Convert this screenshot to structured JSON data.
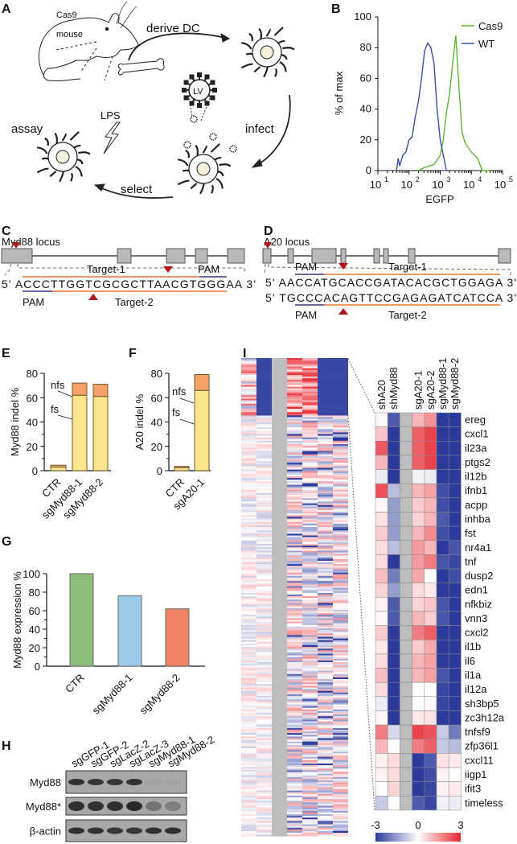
{
  "panels": {
    "A": "A",
    "B": "B",
    "C": "C",
    "D": "D",
    "E": "E",
    "F": "F",
    "G": "G",
    "H": "H",
    "I": "I"
  },
  "schematic": {
    "mouse_label_1": "Cas9",
    "mouse_label_2": "mouse",
    "derive": "derive DC",
    "infect": "infect",
    "select": "select",
    "assay": "assay",
    "lps": "LPS",
    "lv": "LV"
  },
  "loci": {
    "myd88": {
      "title": "Myd88 locus",
      "sequence": "5' ACCCTTGGTCGCGCTTAACGTGGGAA 3'",
      "target1": "Target-1",
      "target2": "Target-2",
      "pam_top": "PAM",
      "pam_bottom": "PAM"
    },
    "a20": {
      "title": "A20 locus",
      "sequence1": "5' AACCATGCACCGATACACGCTGGAGA 3'",
      "sequence2": "5' TGCCCACAGTTCCGAGAGATCATCCA 3'",
      "target1": "Target-1",
      "target2": "Target-2",
      "pam_top": "PAM",
      "pam_bottom": "PAM"
    }
  },
  "colors": {
    "cas9": "#5db535",
    "wt": "#3a4ea3",
    "fs": "#fde48a",
    "nfs": "#f4a066",
    "ctr": "#8dbd7b",
    "sgMyd88_1": "#9ccaea",
    "sgMyd88_2": "#ee8262",
    "pam_line": "#3a4ea3",
    "target_line": "#e8762c",
    "marker": "#b3141c",
    "heat_low": "#2b3a9b",
    "heat_mid": "#ffffff",
    "heat_high": "#e8262f",
    "heat_na": "#bdbdbd"
  },
  "chart_data": [
    {
      "id": "B",
      "type": "line",
      "xlabel": "EGFP",
      "ylabel": "% of max",
      "xscale": "log",
      "xlim": [
        10,
        100000
      ],
      "ylim": [
        0,
        100
      ],
      "xticks": [
        "1",
        "2",
        "3",
        "4",
        "5"
      ],
      "yticks": [
        0,
        20,
        40,
        60,
        80,
        100
      ],
      "legend": "top-right",
      "series": [
        {
          "name": "Cas9",
          "x_log10": [
            2.3,
            2.5,
            2.8,
            3.0,
            3.1,
            3.2,
            3.3,
            3.4,
            3.5,
            3.6,
            3.7,
            3.8,
            4.0,
            4.2,
            4.35,
            4.6
          ],
          "y": [
            0,
            2,
            4,
            10,
            20,
            38,
            50,
            70,
            88,
            55,
            25,
            18,
            12,
            8,
            0,
            0
          ]
        },
        {
          "name": "WT",
          "x_log10": [
            1.6,
            1.65,
            1.7,
            1.8,
            1.9,
            2.0,
            2.1,
            2.2,
            2.3,
            2.4,
            2.5,
            2.6,
            2.7,
            2.8,
            2.9,
            3.0,
            3.1,
            3.2
          ],
          "y": [
            0,
            8,
            3,
            10,
            12,
            20,
            22,
            35,
            45,
            60,
            78,
            83,
            80,
            70,
            40,
            20,
            10,
            0
          ]
        }
      ]
    },
    {
      "id": "E",
      "type": "bar",
      "stacked": true,
      "ylabel": "Myd88 indel %",
      "ylim": [
        0,
        80
      ],
      "yticks": [
        0,
        20,
        40,
        60,
        80
      ],
      "categories": [
        "CTR",
        "sgMyd88-1",
        "sgMyd88-2"
      ],
      "series": [
        {
          "name": "fs",
          "values": [
            3,
            62,
            61
          ]
        },
        {
          "name": "nfs",
          "values": [
            1.5,
            10,
            10
          ]
        }
      ]
    },
    {
      "id": "F",
      "type": "bar",
      "stacked": true,
      "ylabel": "A20 indel %",
      "ylim": [
        0,
        80
      ],
      "yticks": [
        0,
        20,
        40,
        60,
        80
      ],
      "categories": [
        "CTR",
        "sgA20-1"
      ],
      "series": [
        {
          "name": "fs",
          "values": [
            2.5,
            66
          ]
        },
        {
          "name": "nfs",
          "values": [
            1,
            13
          ]
        }
      ]
    },
    {
      "id": "G",
      "type": "bar",
      "ylabel": "Myd88 expression %",
      "ylim": [
        0,
        100
      ],
      "yticks": [
        0,
        20,
        40,
        60,
        80,
        100
      ],
      "categories": [
        "CTR",
        "sgMyd88-1",
        "sgMyd88-2"
      ],
      "values": [
        100,
        76,
        62
      ]
    },
    {
      "id": "I",
      "type": "heatmap",
      "colorbar": {
        "min": -3,
        "mid": 0,
        "max": 3,
        "labels": [
          "-3",
          "0",
          "3"
        ]
      },
      "columns": [
        "shA20",
        "shMyd88",
        "",
        "sgA20-1",
        "sgA20-2",
        "sgMyd88-1",
        "sgMyd88-2"
      ],
      "rows": [
        "ereg",
        "cxcl1",
        "il23a",
        "ptgs2",
        "il12b",
        "ifnb1",
        "acpp",
        "inhba",
        "fst",
        "nr4a1",
        "tnf",
        "dusp2",
        "edn1",
        "nfkbiz",
        "vnn3",
        "cxcl2",
        "il1b",
        "il6",
        "il1a",
        "il12a",
        "sh3bp5",
        "zc3h12a",
        "tnfsf9",
        "zfp36l1",
        "cxcl11",
        "iigp1",
        "ifit3",
        "timeless"
      ],
      "values": [
        [
          0.1,
          -2.5,
          null,
          1,
          1.5,
          -3,
          -3
        ],
        [
          0.8,
          -3,
          null,
          2.2,
          2.6,
          -3,
          -3
        ],
        [
          2.3,
          -3,
          null,
          2.2,
          2.6,
          -3,
          -3
        ],
        [
          1,
          -3,
          null,
          2.2,
          2.6,
          -3,
          -3
        ],
        [
          -0.3,
          -3,
          null,
          -0.2,
          -0.3,
          -3,
          -3
        ],
        [
          2.4,
          -1,
          null,
          1,
          1.3,
          -2.7,
          -3
        ],
        [
          0.1,
          -1.5,
          null,
          0.7,
          1,
          -2.7,
          -3
        ],
        [
          0.4,
          -1.5,
          null,
          0.6,
          1,
          -2.5,
          -3
        ],
        [
          0.7,
          -1.5,
          null,
          1,
          1.6,
          -2.7,
          -3
        ],
        [
          0.5,
          -1,
          null,
          1.4,
          1,
          -3,
          -2.6
        ],
        [
          0.5,
          -3,
          null,
          1.4,
          1.8,
          -2.6,
          -2.8
        ],
        [
          0.9,
          -2,
          null,
          1.2,
          0,
          -3,
          -2.7
        ],
        [
          0.6,
          -1.5,
          null,
          0.5,
          0.3,
          -3,
          -3
        ],
        [
          0.2,
          -2.5,
          null,
          0.6,
          0.8,
          -2.6,
          -3
        ],
        [
          0.1,
          -2.5,
          null,
          1,
          0.7,
          -2.6,
          -3
        ],
        [
          0.7,
          -3,
          null,
          1.8,
          2.2,
          -3,
          -3
        ],
        [
          0.3,
          -3,
          null,
          0.7,
          1.2,
          -3,
          -3
        ],
        [
          0.5,
          -3,
          null,
          1,
          1.3,
          -3,
          -3
        ],
        [
          0.9,
          -3,
          null,
          1,
          1.3,
          -2.6,
          -3
        ],
        [
          0.5,
          -3,
          null,
          0,
          0,
          -2.8,
          -3
        ],
        [
          -0.3,
          -3,
          null,
          0,
          0.1,
          -2.8,
          -3
        ],
        [
          0.1,
          -3,
          null,
          0.3,
          0.4,
          -3,
          -3
        ],
        [
          1.8,
          -0.6,
          null,
          2.6,
          2.4,
          -0.8,
          -2
        ],
        [
          1,
          0,
          null,
          1.8,
          2.2,
          -0.8,
          -1
        ],
        [
          0.2,
          0.5,
          null,
          -3,
          -2.5,
          0.4,
          0.3
        ],
        [
          0.2,
          0.5,
          null,
          -3,
          -2.7,
          0.2,
          0
        ],
        [
          0,
          0.6,
          null,
          -3,
          -2.8,
          0.2,
          0.3
        ],
        [
          -0.8,
          0,
          null,
          -2.5,
          -2.8,
          -0.2,
          -0.3
        ]
      ]
    }
  ],
  "blot": {
    "lanes": [
      "sgGFP-1",
      "sgGFP-2",
      "sgLacZ-2",
      "sgLacZ-3",
      "sgMyd88-1",
      "sgMyd88-2"
    ],
    "rows": [
      {
        "label": "Myd88",
        "intensity": [
          0.9,
          0.85,
          0.85,
          0.9,
          0.05,
          0.03
        ]
      },
      {
        "label": "Myd88*",
        "intensity": [
          0.9,
          0.9,
          0.9,
          0.95,
          0.4,
          0.3
        ]
      },
      {
        "label": "β-actin",
        "intensity": [
          0.9,
          0.9,
          0.85,
          0.85,
          0.9,
          0.9
        ]
      }
    ]
  }
}
